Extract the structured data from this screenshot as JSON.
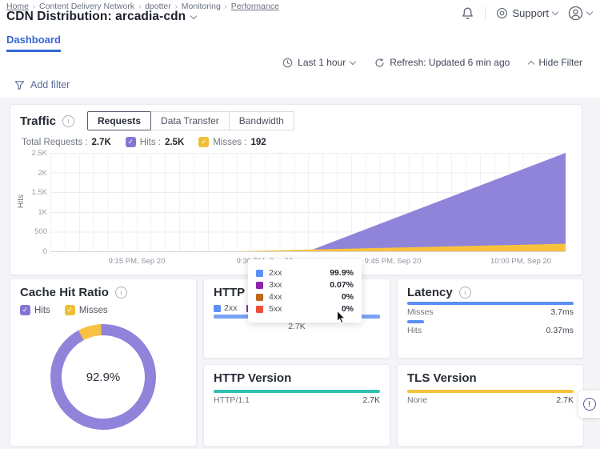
{
  "header": {
    "breadcrumb": [
      {
        "label": "Home",
        "link": true
      },
      {
        "label": "Content Delivery Network",
        "link": false
      },
      {
        "label": "dpotter",
        "link": false
      },
      {
        "label": "Monitoring",
        "link": false
      },
      {
        "label": "Performance",
        "link": true
      }
    ],
    "title": "CDN Distribution: arcadia-cdn",
    "support_label": "Support"
  },
  "tabs": {
    "dashboard": "Dashboard"
  },
  "controls": {
    "time_range": "Last 1 hour",
    "refresh": "Refresh: Updated 6 min ago",
    "hide_filter": "Hide Filter",
    "add_filter": "Add filter"
  },
  "traffic": {
    "title": "Traffic",
    "tabs": [
      "Requests",
      "Data Transfer",
      "Bandwidth"
    ],
    "active_tab": "Requests",
    "total_label": "Total Requests :",
    "total_value": "2.7K",
    "hits_label": "Hits :",
    "hits_value": "2.5K",
    "misses_label": "Misses :",
    "misses_value": "192",
    "ylabel": "Hits",
    "yticks": [
      "2.5K",
      "2K",
      "1.5K",
      "1K",
      "500",
      "0"
    ],
    "xticks": [
      "9:15 PM, Sep 20",
      "9:30 PM, Sep 20",
      "9:45 PM, Sep 20",
      "10:00 PM, Sep 20"
    ]
  },
  "tooltip": {
    "rows": [
      {
        "label": "2xx",
        "value": "99.9%",
        "color": "#5B8FF9"
      },
      {
        "label": "3xx",
        "value": "0.07%",
        "color": "#8E24AA"
      },
      {
        "label": "4xx",
        "value": "0%",
        "color": "#BF6A1A"
      },
      {
        "label": "5xx",
        "value": "0%",
        "color": "#EF4F38"
      }
    ]
  },
  "cache": {
    "title": "Cache Hit Ratio",
    "legend": [
      {
        "label": "Hits",
        "color": "#8276D2"
      },
      {
        "label": "Misses",
        "color": "#EFBE35"
      }
    ],
    "donut_colors": {
      "hits": "#8F84DA",
      "misses": "#F7C243"
    },
    "center_value": "92.9%",
    "hits_pct": 92.9,
    "misses_pct": 7.1
  },
  "http_status": {
    "title": "HTTP Status",
    "legend": [
      {
        "label": "2xx",
        "color": "#5B8FF9"
      },
      {
        "label": "3xx",
        "color": "#8E24AA"
      },
      {
        "label": "4xx",
        "color": "#BF6A1A"
      },
      {
        "label": "5xx",
        "color": "#EF4F38"
      }
    ],
    "bar_pct": 100,
    "bar_color": "#7AA3F2",
    "bar_value": "2.7K"
  },
  "latency": {
    "title": "Latency",
    "bar_color": "#5B8FF9",
    "rows": [
      {
        "label": "Misses",
        "value": "3.7ms",
        "pct": 100
      },
      {
        "label": "Hits",
        "value": "0.37ms",
        "pct": 10
      }
    ]
  },
  "http_version": {
    "title": "HTTP Version",
    "rows": [
      {
        "label": "HTTP/1.1",
        "value": "2.7K",
        "pct": 100,
        "color": "#2FC1B2"
      }
    ]
  },
  "tls_version": {
    "title": "TLS Version",
    "rows": [
      {
        "label": "None",
        "value": "2.7K",
        "pct": 100,
        "color": "#F5C33B"
      }
    ]
  },
  "chart_data": [
    {
      "type": "area",
      "title": "Traffic — Requests",
      "ylabel": "Hits",
      "ylim": [
        0,
        2500
      ],
      "x_ticks": [
        "9:15 PM, Sep 20",
        "9:30 PM, Sep 20",
        "9:45 PM, Sep 20",
        "10:00 PM, Sep 20"
      ],
      "series": [
        {
          "name": "Hits",
          "color": "#8F84DA",
          "start_frac": 0.5,
          "end_value": 2500
        },
        {
          "name": "Misses",
          "color": "#F8C33C",
          "start_frac": 0.355,
          "end_value": 192
        }
      ]
    },
    {
      "type": "pie",
      "title": "Cache Hit Ratio",
      "labels": [
        "Hits",
        "Misses"
      ],
      "values": [
        92.9,
        7.1
      ],
      "center_label": "92.9%"
    },
    {
      "type": "bar",
      "title": "HTTP Status",
      "categories": [
        "2xx",
        "3xx",
        "4xx",
        "5xx"
      ],
      "values": [
        99.9,
        0.07,
        0,
        0
      ],
      "total": "2.7K"
    },
    {
      "type": "bar",
      "title": "Latency",
      "categories": [
        "Misses",
        "Hits"
      ],
      "values": [
        3.7,
        0.37
      ],
      "unit": "ms"
    },
    {
      "type": "bar",
      "title": "HTTP Version",
      "categories": [
        "HTTP/1.1"
      ],
      "values": [
        2700
      ]
    },
    {
      "type": "bar",
      "title": "TLS Version",
      "categories": [
        "None"
      ],
      "values": [
        2700
      ]
    }
  ]
}
